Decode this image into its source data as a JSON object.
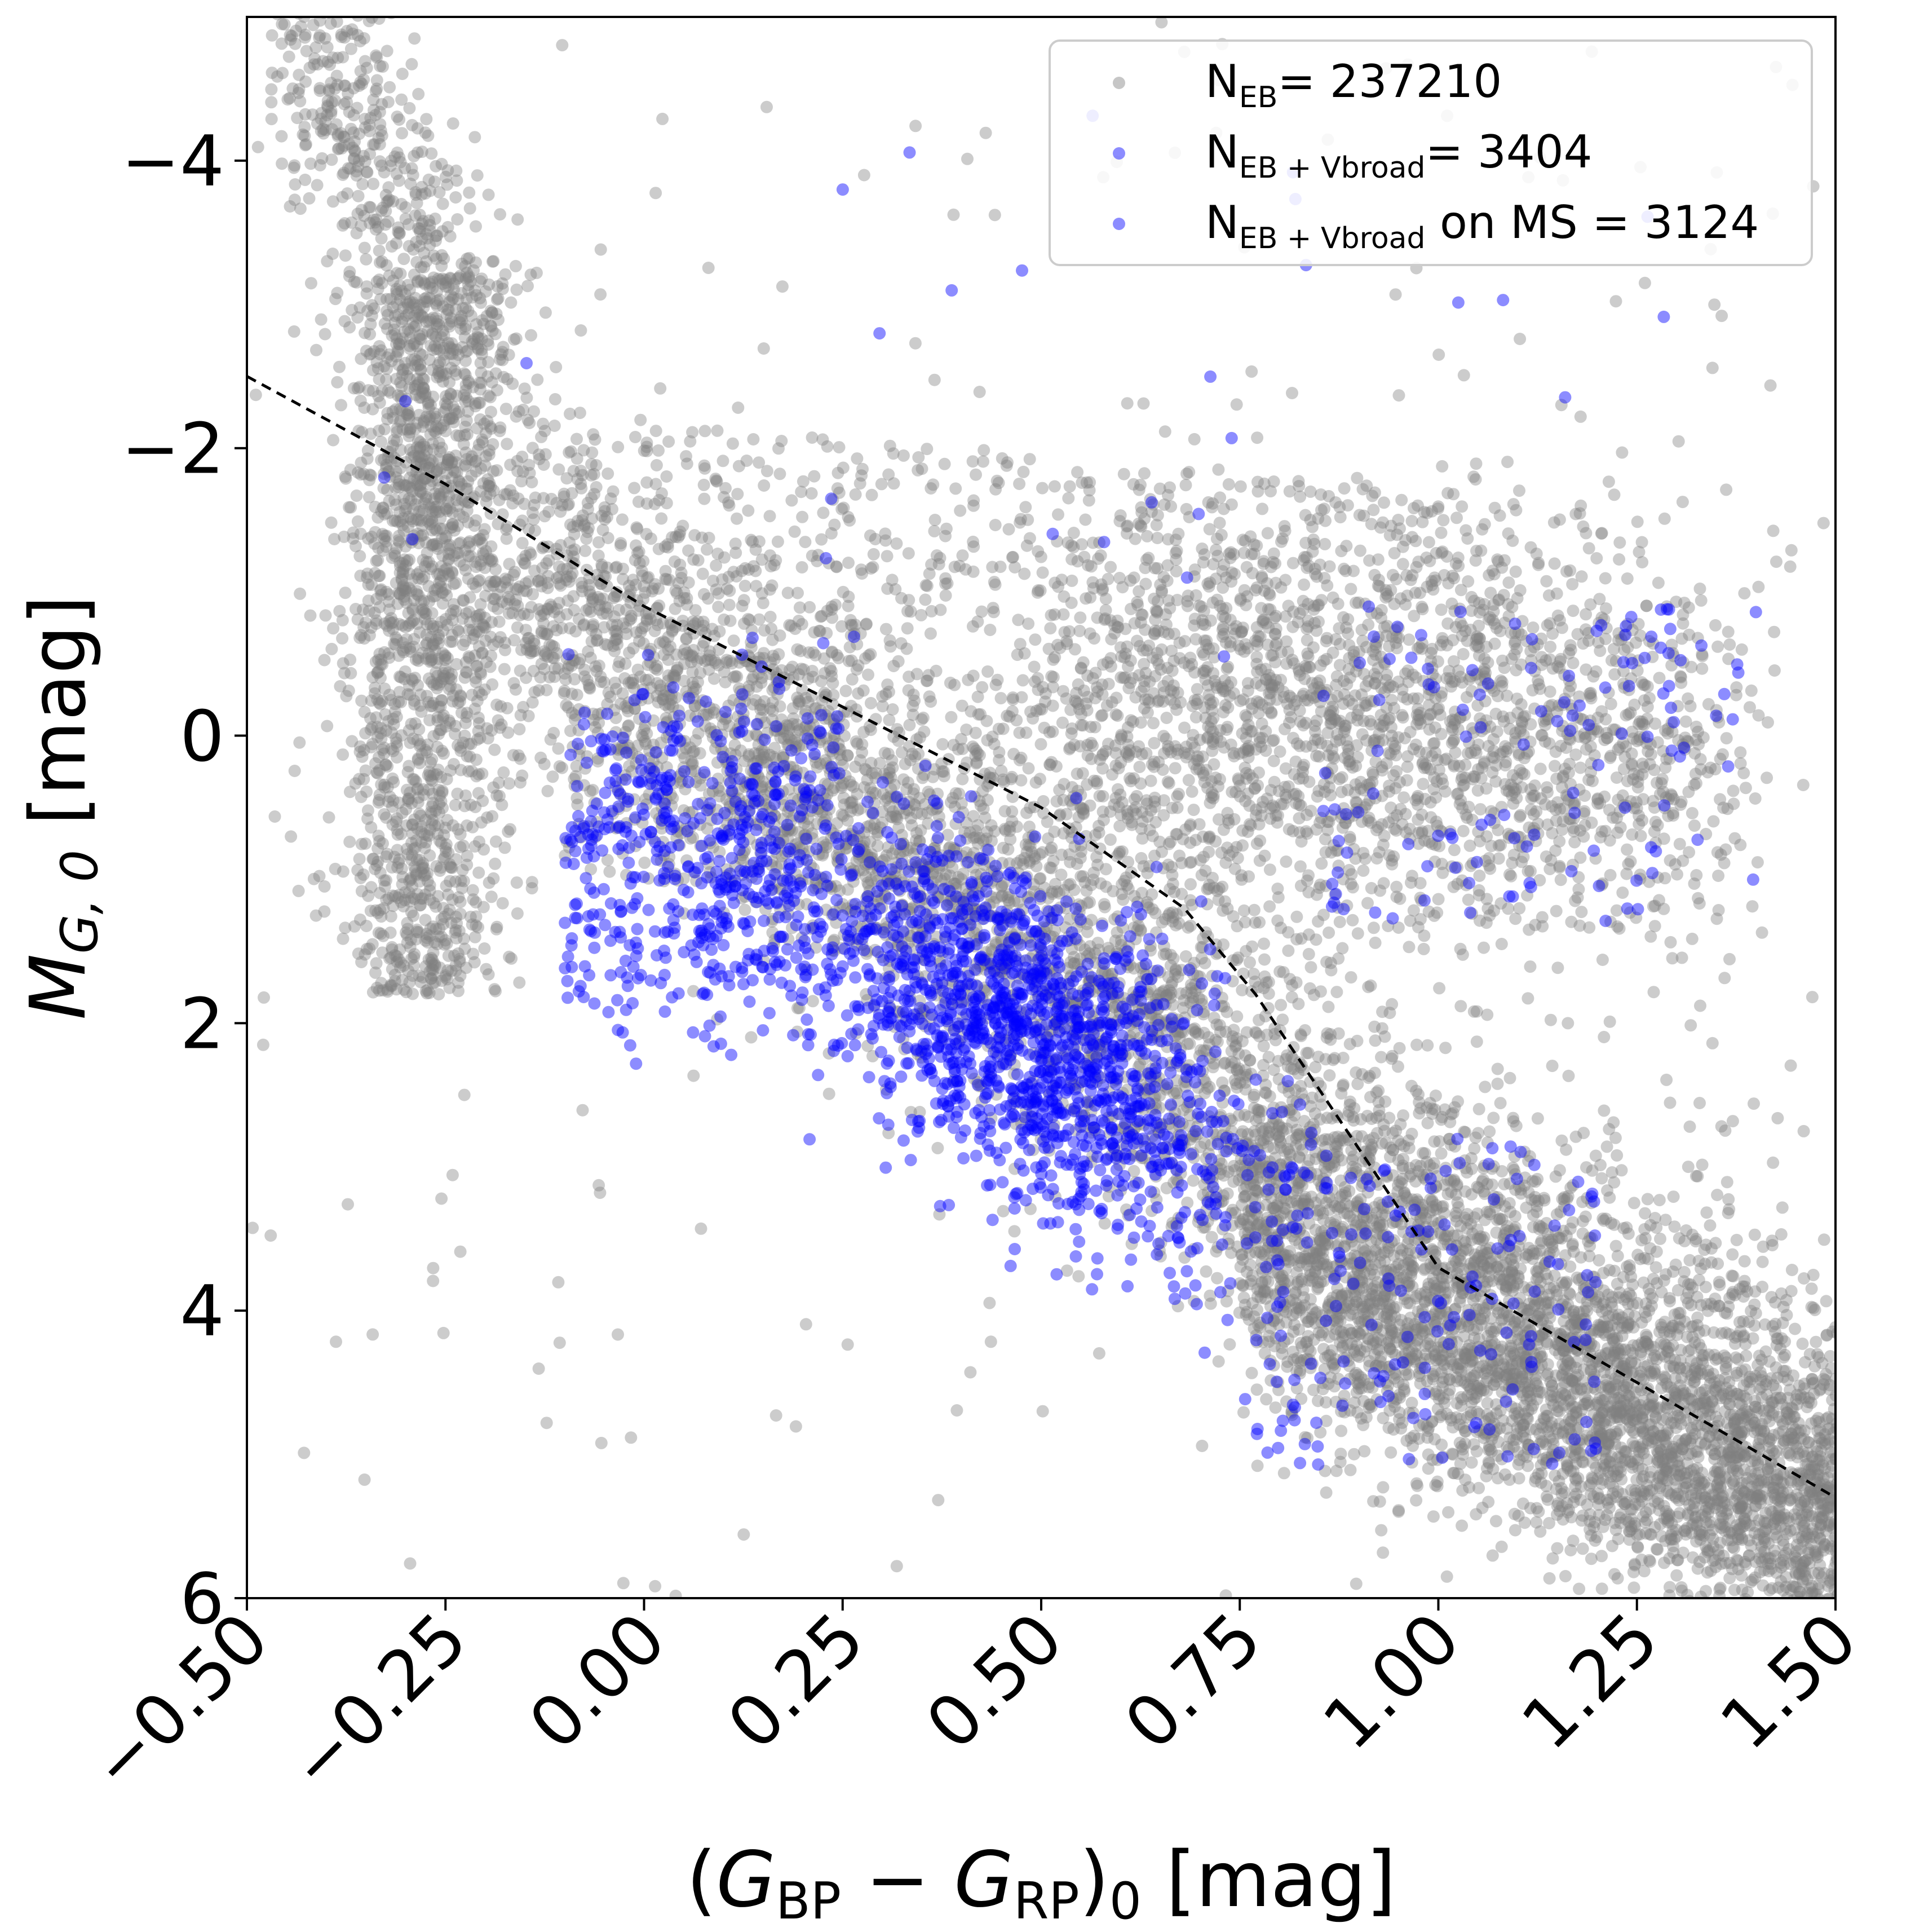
{
  "chart_data": {
    "type": "scatter",
    "title": "",
    "xlabel": {
      "text": "(G_BP − G_RP)_0 [mag]",
      "prefix": "(",
      "g1": "G",
      "sub1": "BP",
      "minus": " − ",
      "g2": "G",
      "sub2": "RP",
      "close": ")",
      "sub3": "0",
      "unit": " [mag]"
    },
    "ylabel": {
      "text": "M_G,0 [mag]",
      "m": "M",
      "sub": "G, 0",
      "unit": " [mag]"
    },
    "xlim": [
      -0.5,
      1.5
    ],
    "ylim": [
      6,
      -5
    ],
    "y_inverted": true,
    "x_ticks": [
      -0.5,
      -0.25,
      0.0,
      0.25,
      0.5,
      0.75,
      1.0,
      1.25,
      1.5
    ],
    "x_tick_labels": [
      "−0.50",
      "−0.25",
      "0.00",
      "0.25",
      "0.50",
      "0.75",
      "1.00",
      "1.25",
      "1.50"
    ],
    "x_tick_rotation_deg": 45,
    "y_ticks": [
      -4,
      -2,
      0,
      2,
      4,
      6
    ],
    "y_tick_labels": [
      "−4",
      "−2",
      "0",
      "2",
      "4",
      "6"
    ],
    "grid": false,
    "legend_placement": "upper-right",
    "series": [
      {
        "name": "N_EB = 237210",
        "color": "#808080",
        "alpha": 0.4,
        "distribution": "main sequence band from (-0.3, -3) to (1.5, 5.8) plus giant branch clump near (0.5-1.3, 0 to -1.5); sparse halo of outliers",
        "points_sample": [
          [
            -0.45,
            -4.6
          ],
          [
            -0.4,
            -4.1
          ],
          [
            -0.35,
            -3.6
          ],
          [
            -0.3,
            -3.2
          ],
          [
            -0.28,
            -2.8
          ],
          [
            -0.25,
            -2.3
          ],
          [
            -0.22,
            -1.8
          ],
          [
            -0.2,
            -1.2
          ],
          [
            -0.18,
            -0.6
          ],
          [
            -0.15,
            0.0
          ],
          [
            -0.1,
            0.5
          ],
          [
            -0.05,
            0.9
          ],
          [
            0.0,
            1.3
          ],
          [
            0.1,
            1.6
          ],
          [
            0.2,
            1.9
          ],
          [
            0.3,
            2.2
          ],
          [
            0.4,
            2.5
          ],
          [
            0.5,
            2.8
          ],
          [
            0.6,
            3.2
          ],
          [
            0.7,
            3.6
          ],
          [
            0.8,
            4.0
          ],
          [
            0.9,
            4.4
          ],
          [
            1.0,
            4.7
          ],
          [
            1.1,
            5.0
          ],
          [
            1.2,
            5.3
          ],
          [
            1.3,
            5.5
          ],
          [
            1.4,
            5.7
          ],
          [
            1.5,
            5.9
          ],
          [
            0.6,
            -0.5
          ],
          [
            0.8,
            -0.3
          ],
          [
            1.0,
            -0.1
          ],
          [
            1.1,
            0.3
          ],
          [
            1.2,
            0.6
          ]
        ]
      },
      {
        "name": "N_EB+Vbroad = 3404",
        "color": "#0000ff",
        "alpha": 0.45,
        "distribution": "broad-line EBs concentrated near (0.45, 2.2), scattered redward"
      },
      {
        "name": "N_EB+Vbroad on MS = 3124",
        "color": "#0000ff",
        "alpha": 0.45,
        "distribution": "same sample restricted below the dashed MS boundary"
      }
    ],
    "legend": [
      {
        "main": "N",
        "sub": "EB",
        "rest": "= 237210",
        "color": "#808080"
      },
      {
        "main": "N",
        "sub": "EB + Vbroad",
        "rest": "= 3404",
        "color": "#0000ff"
      },
      {
        "main": "N",
        "sub": "EB + Vbroad",
        "rest": " on MS = 3124",
        "color": "#0000ff"
      }
    ],
    "dashed_line": {
      "description": "main-sequence boundary",
      "color": "#000000",
      "style": "dashed",
      "points": [
        [
          -0.5,
          -2.5
        ],
        [
          -0.25,
          -1.75
        ],
        [
          0.0,
          -0.9
        ],
        [
          0.25,
          -0.2
        ],
        [
          0.5,
          0.5
        ],
        [
          0.68,
          1.2
        ],
        [
          0.77,
          1.8
        ],
        [
          1.0,
          3.7
        ],
        [
          1.25,
          4.5
        ],
        [
          1.5,
          5.3
        ]
      ]
    }
  }
}
